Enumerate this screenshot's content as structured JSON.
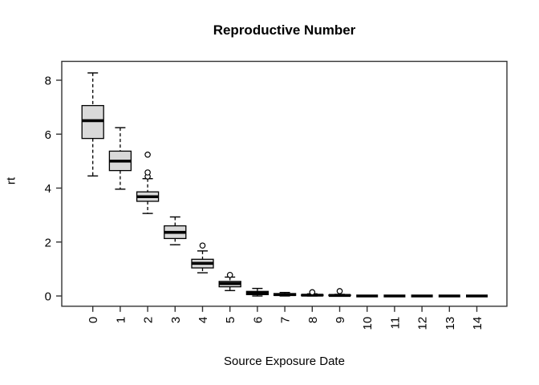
{
  "chart_data": {
    "type": "boxplot",
    "title": "Reproductive Number",
    "xlabel": "Source Exposure Date",
    "ylabel": "rt",
    "categories": [
      "0",
      "1",
      "2",
      "3",
      "4",
      "5",
      "6",
      "7",
      "8",
      "9",
      "10",
      "11",
      "12",
      "13",
      "14"
    ],
    "yticks": [
      0,
      2,
      4,
      6,
      8
    ],
    "ylim": [
      -0.4,
      8.7
    ],
    "grid": false,
    "legend": "none",
    "boxes": [
      {
        "category": "0",
        "whisker_low": 4.45,
        "q1": 5.84,
        "median": 6.5,
        "q3": 7.06,
        "whisker_high": 8.27,
        "outliers": []
      },
      {
        "category": "1",
        "whisker_low": 3.96,
        "q1": 4.65,
        "median": 5.0,
        "q3": 5.37,
        "whisker_high": 6.24,
        "outliers": []
      },
      {
        "category": "2",
        "whisker_low": 3.06,
        "q1": 3.51,
        "median": 3.68,
        "q3": 3.86,
        "whisker_high": 4.35,
        "outliers": [
          4.43,
          4.58,
          5.24
        ]
      },
      {
        "category": "3",
        "whisker_low": 1.9,
        "q1": 2.13,
        "median": 2.36,
        "q3": 2.6,
        "whisker_high": 2.93,
        "outliers": []
      },
      {
        "category": "4",
        "whisker_low": 0.86,
        "q1": 1.04,
        "median": 1.21,
        "q3": 1.36,
        "whisker_high": 1.67,
        "outliers": [
          1.87
        ]
      },
      {
        "category": "5",
        "whisker_low": 0.2,
        "q1": 0.34,
        "median": 0.46,
        "q3": 0.54,
        "whisker_high": 0.7,
        "outliers": [
          0.78
        ]
      },
      {
        "category": "6",
        "whisker_low": 0.0,
        "q1": 0.05,
        "median": 0.11,
        "q3": 0.17,
        "whisker_high": 0.28,
        "outliers": []
      },
      {
        "category": "7",
        "whisker_low": 0.0,
        "q1": 0.02,
        "median": 0.05,
        "q3": 0.09,
        "whisker_high": 0.13,
        "outliers": []
      },
      {
        "category": "8",
        "whisker_low": 0.0,
        "q1": 0.01,
        "median": 0.03,
        "q3": 0.05,
        "whisker_high": 0.08,
        "outliers": [
          0.14
        ]
      },
      {
        "category": "9",
        "whisker_low": 0.0,
        "q1": 0.01,
        "median": 0.02,
        "q3": 0.04,
        "whisker_high": 0.06,
        "outliers": [
          0.18
        ]
      },
      {
        "category": "10",
        "whisker_low": 0.0,
        "q1": 0.0,
        "median": 0.0,
        "q3": 0.0,
        "whisker_high": 0.0,
        "outliers": []
      },
      {
        "category": "11",
        "whisker_low": 0.0,
        "q1": 0.0,
        "median": 0.0,
        "q3": 0.0,
        "whisker_high": 0.0,
        "outliers": []
      },
      {
        "category": "12",
        "whisker_low": 0.0,
        "q1": 0.0,
        "median": 0.0,
        "q3": 0.0,
        "whisker_high": 0.0,
        "outliers": []
      },
      {
        "category": "13",
        "whisker_low": 0.0,
        "q1": 0.0,
        "median": 0.0,
        "q3": 0.0,
        "whisker_high": 0.0,
        "outliers": []
      },
      {
        "category": "14",
        "whisker_low": 0.0,
        "q1": 0.0,
        "median": 0.0,
        "q3": 0.0,
        "whisker_high": 0.0,
        "outliers": []
      }
    ],
    "colors": {
      "box_fill": "#d9d9d9",
      "stroke": "#000000",
      "axis": "#333333",
      "background": "#ffffff"
    }
  }
}
